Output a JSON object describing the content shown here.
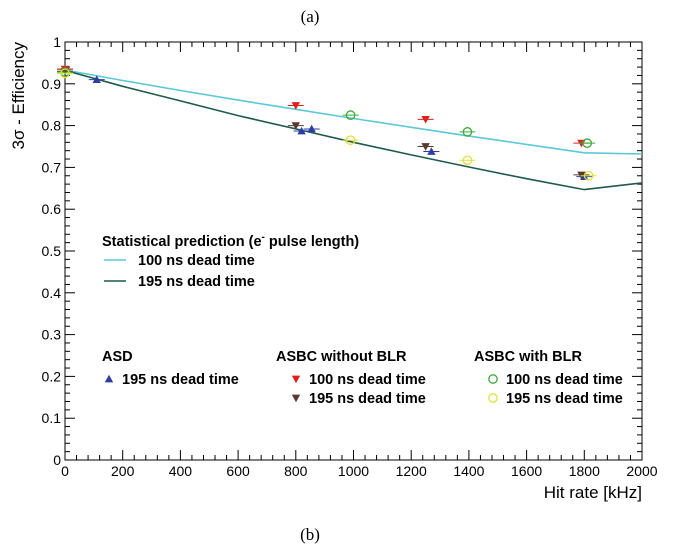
{
  "captions": {
    "top": "(a)",
    "bottom": "(b)"
  },
  "chart_data": {
    "type": "scatter",
    "title": "",
    "xlabel": "Hit rate [kHz]",
    "ylabel": "3σ - Efficiency",
    "xlim": [
      0,
      2000
    ],
    "ylim": [
      0,
      1
    ],
    "xticks": [
      0,
      200,
      400,
      600,
      800,
      1000,
      1200,
      1400,
      1600,
      1800,
      2000
    ],
    "xtick_labels": [
      "0",
      "200",
      "400",
      "600",
      "800",
      "1000",
      "1200",
      "1400",
      "1600",
      "1800",
      "2000"
    ],
    "yticks": [
      0,
      0.1,
      0.2,
      0.3,
      0.4,
      0.5,
      0.6,
      0.7,
      0.8,
      0.9,
      1
    ],
    "ytick_labels": [
      "0",
      "0.1",
      "0.2",
      "0.3",
      "0.4",
      "0.5",
      "0.6",
      "0.7",
      "0.8",
      "0.9",
      "1"
    ],
    "grid": false,
    "curves": [
      {
        "name": "100 ns dead time",
        "color": "#5bc8d8",
        "points": [
          [
            0,
            0.933
          ],
          [
            200,
            0.908
          ],
          [
            400,
            0.884
          ],
          [
            600,
            0.861
          ],
          [
            800,
            0.839
          ],
          [
            1000,
            0.817
          ],
          [
            1200,
            0.796
          ],
          [
            1400,
            0.775
          ],
          [
            1600,
            0.755
          ],
          [
            1800,
            0.735
          ],
          [
            2000,
            0.732
          ]
        ]
      },
      {
        "name": "195 ns dead time",
        "color": "#1f5a4c",
        "points": [
          [
            0,
            0.932
          ],
          [
            200,
            0.894
          ],
          [
            400,
            0.859
          ],
          [
            600,
            0.824
          ],
          [
            800,
            0.792
          ],
          [
            1000,
            0.76
          ],
          [
            1200,
            0.73
          ],
          [
            1400,
            0.701
          ],
          [
            1600,
            0.673
          ],
          [
            1800,
            0.647
          ],
          [
            2000,
            0.663
          ]
        ]
      }
    ],
    "series": [
      {
        "name": "195 ns dead time",
        "group": "ASD",
        "marker": "triangle-up",
        "color": "#2b3fa0",
        "x": [
          0,
          110,
          820,
          855,
          1270,
          1800
        ],
        "y": [
          0.935,
          0.91,
          0.787,
          0.792,
          0.738,
          0.678
        ]
      },
      {
        "name": "100 ns dead time",
        "group": "ASBC without BLR",
        "marker": "triangle-down",
        "color": "#e0201f",
        "x": [
          0,
          800,
          1250,
          1790
        ],
        "y": [
          0.935,
          0.848,
          0.815,
          0.758
        ]
      },
      {
        "name": "195 ns dead time",
        "group": "ASBC without BLR",
        "marker": "triangle-down",
        "color": "#5a3a30",
        "x": [
          0,
          800,
          1250,
          1790
        ],
        "y": [
          0.93,
          0.8,
          0.75,
          0.682
        ]
      },
      {
        "name": "100 ns dead time",
        "group": "ASBC with BLR",
        "marker": "circle-open",
        "color": "#3aaa3a",
        "x": [
          0,
          990,
          1395,
          1810
        ],
        "y": [
          0.928,
          0.825,
          0.785,
          0.758
        ]
      },
      {
        "name": "195 ns dead time",
        "group": "ASBC with BLR",
        "marker": "circle-open",
        "color": "#e0e03a",
        "x": [
          0,
          990,
          1395,
          1815
        ],
        "y": [
          0.925,
          0.765,
          0.717,
          0.68
        ]
      }
    ],
    "legend": {
      "prediction_title": "Statistical prediction (e",
      "prediction_title_sup": "-",
      "prediction_title_end": " pulse length)",
      "prediction_items": [
        "100 ns dead time",
        "195 ns dead time"
      ],
      "groups": [
        {
          "title": "ASD",
          "items": [
            "195 ns dead time"
          ]
        },
        {
          "title": "ASBC without BLR",
          "items": [
            "100 ns dead time",
            "195 ns dead time"
          ]
        },
        {
          "title": "ASBC with BLR",
          "items": [
            "100 ns dead time",
            "195 ns dead time"
          ]
        }
      ]
    }
  }
}
